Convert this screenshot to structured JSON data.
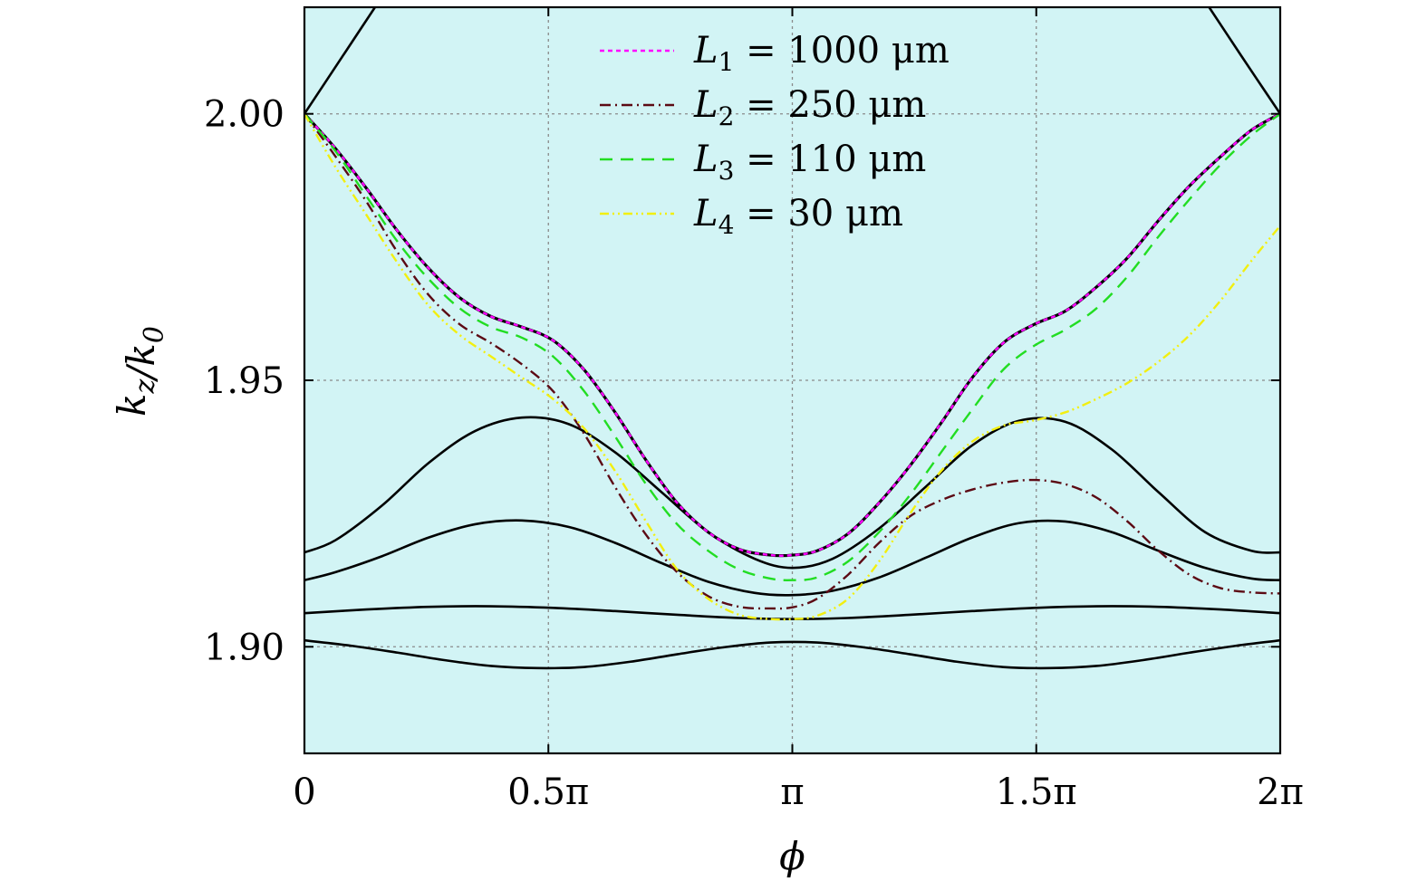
{
  "chart_data": {
    "type": "line",
    "title": "",
    "xlabel": "ϕ",
    "ylabel": "k_z/k_0",
    "xlim": [
      0,
      6.283185
    ],
    "ylim": [
      1.88,
      2.02
    ],
    "grid": true,
    "x_ticks": [
      {
        "value": 0,
        "label": "0"
      },
      {
        "value": 1.570796,
        "label": "0.5π"
      },
      {
        "value": 3.141593,
        "label": "π"
      },
      {
        "value": 4.712389,
        "label": "1.5π"
      },
      {
        "value": 6.283185,
        "label": "2π"
      }
    ],
    "y_ticks": [
      {
        "value": 1.9,
        "label": "1.90"
      },
      {
        "value": 1.95,
        "label": "1.95"
      },
      {
        "value": 2.0,
        "label": "2.00"
      }
    ],
    "legend": {
      "position": "top-center",
      "entries": [
        {
          "symbol": "L",
          "sub": "1",
          "text": "= 1000 μm",
          "series": "L1"
        },
        {
          "symbol": "L",
          "sub": "2",
          "text": "= 250 μm",
          "series": "L2"
        },
        {
          "symbol": "L",
          "sub": "3",
          "text": "= 110 μm",
          "series": "L3"
        },
        {
          "symbol": "L",
          "sub": "4",
          "text": "= 30 μm",
          "series": "L4"
        }
      ]
    },
    "series": [
      {
        "name": "band-1",
        "color": "#000000",
        "dash": "",
        "x": [
          0,
          0.3,
          0.6,
          0.9,
          1.2,
          1.5,
          1.8,
          2.1,
          2.4,
          2.7,
          3.0,
          3.3,
          3.6,
          3.9,
          4.2,
          4.5,
          4.8,
          5.1,
          5.4,
          5.7,
          6.0,
          6.2832
        ],
        "y": [
          1.9012,
          1.9002,
          1.8989,
          1.8975,
          1.8964,
          1.896,
          1.8962,
          1.8972,
          1.8986,
          1.8999,
          1.9008,
          1.9008,
          1.8999,
          1.8986,
          1.8972,
          1.8962,
          1.896,
          1.8964,
          1.8975,
          1.8989,
          1.9002,
          1.9012
        ]
      },
      {
        "name": "band-2",
        "color": "#000000",
        "dash": "",
        "x": [
          0,
          0.4,
          0.8,
          1.2,
          1.6,
          2.0,
          2.4,
          2.8,
          3.1416,
          3.5,
          3.9,
          4.3,
          4.7,
          5.1,
          5.5,
          5.9,
          6.2832
        ],
        "y": [
          1.9063,
          1.907,
          1.9075,
          1.9076,
          1.9073,
          1.9067,
          1.906,
          1.9054,
          1.9052,
          1.9054,
          1.906,
          1.9067,
          1.9073,
          1.9076,
          1.9075,
          1.907,
          1.9063
        ]
      },
      {
        "name": "band-3",
        "color": "#000000",
        "dash": "",
        "x": [
          0,
          0.2,
          0.5,
          0.8,
          1.1,
          1.4,
          1.7,
          2.0,
          2.3,
          2.6,
          2.9,
          3.1416,
          3.4,
          3.7,
          4.0,
          4.3,
          4.6,
          4.9,
          5.2,
          5.5,
          5.8,
          6.1,
          6.2832
        ],
        "y": [
          1.9125,
          1.914,
          1.917,
          1.9205,
          1.923,
          1.9237,
          1.9225,
          1.9195,
          1.9157,
          1.9122,
          1.9101,
          1.9097,
          1.9105,
          1.913,
          1.9167,
          1.9205,
          1.9232,
          1.9235,
          1.9215,
          1.918,
          1.9148,
          1.9128,
          1.9125
        ]
      },
      {
        "name": "band-4",
        "color": "#000000",
        "dash": "",
        "x": [
          0,
          0.2,
          0.5,
          0.8,
          1.1,
          1.4,
          1.7,
          2.0,
          2.3,
          2.6,
          2.9,
          3.1416,
          3.4,
          3.7,
          4.0,
          4.3,
          4.6,
          4.9,
          5.2,
          5.5,
          5.8,
          6.1,
          6.2832
        ],
        "y": [
          1.9177,
          1.92,
          1.9265,
          1.9345,
          1.9405,
          1.943,
          1.9418,
          1.9365,
          1.929,
          1.9215,
          1.9165,
          1.9148,
          1.9165,
          1.9222,
          1.93,
          1.9378,
          1.9424,
          1.9422,
          1.937,
          1.929,
          1.9215,
          1.918,
          1.9177
        ]
      },
      {
        "name": "band-top-left",
        "color": "#000000",
        "dash": "",
        "x": [
          0,
          0.25,
          0.5
        ],
        "y": [
          2.0,
          2.011,
          2.022
        ]
      },
      {
        "name": "band-top-right",
        "color": "#000000",
        "dash": "",
        "x": [
          5.78,
          6.03,
          6.2832
        ],
        "y": [
          2.022,
          2.011,
          2.0
        ]
      },
      {
        "name": "L1",
        "color": "#ff00ff",
        "dash": "5 4",
        "underlay": "#000000",
        "x": [
          0,
          0.2,
          0.4,
          0.6,
          0.8,
          1.0,
          1.2,
          1.4,
          1.6,
          1.8,
          2.0,
          2.2,
          2.4,
          2.6,
          2.8,
          3.0,
          3.1416,
          3.3,
          3.5,
          3.7,
          3.9,
          4.1,
          4.3,
          4.5,
          4.7,
          4.9,
          5.1,
          5.3,
          5.5,
          5.7,
          5.9,
          6.1,
          6.2832
        ],
        "y": [
          2.0,
          1.9935,
          1.986,
          1.978,
          1.971,
          1.9655,
          1.962,
          1.96,
          1.9575,
          1.952,
          1.944,
          1.935,
          1.927,
          1.9215,
          1.9183,
          1.9172,
          1.9172,
          1.918,
          1.9212,
          1.927,
          1.934,
          1.942,
          1.9505,
          1.957,
          1.9605,
          1.963,
          1.9675,
          1.973,
          1.98,
          1.9865,
          1.992,
          1.997,
          2.0
        ]
      },
      {
        "name": "L2",
        "color": "#5c0a14",
        "dash": "12 5 2 5",
        "x": [
          0,
          0.2,
          0.4,
          0.6,
          0.8,
          1.0,
          1.2,
          1.4,
          1.6,
          1.8,
          2.0,
          2.2,
          2.4,
          2.6,
          2.8,
          3.0,
          3.1416,
          3.3,
          3.5,
          3.7,
          3.9,
          4.1,
          4.3,
          4.5,
          4.7,
          4.9,
          5.1,
          5.3,
          5.5,
          5.7,
          5.9,
          6.1,
          6.2832
        ],
        "y": [
          2.0,
          1.992,
          1.9835,
          1.974,
          1.966,
          1.9605,
          1.957,
          1.953,
          1.948,
          1.94,
          1.93,
          1.921,
          1.914,
          1.9095,
          1.9075,
          1.9072,
          1.9074,
          1.909,
          1.9135,
          1.9195,
          1.9245,
          1.9275,
          1.9295,
          1.9308,
          1.9313,
          1.9305,
          1.928,
          1.9235,
          1.918,
          1.9135,
          1.911,
          1.9102,
          1.91
        ]
      },
      {
        "name": "L3",
        "color": "#22dd22",
        "dash": "14 9",
        "x": [
          0,
          0.2,
          0.4,
          0.6,
          0.8,
          1.0,
          1.2,
          1.4,
          1.6,
          1.8,
          2.0,
          2.2,
          2.4,
          2.6,
          2.8,
          3.0,
          3.1416,
          3.3,
          3.5,
          3.7,
          3.9,
          4.1,
          4.3,
          4.5,
          4.7,
          4.9,
          5.1,
          5.3,
          5.5,
          5.7,
          5.9,
          6.1,
          6.2832
        ],
        "y": [
          2.0,
          1.993,
          1.9845,
          1.976,
          1.969,
          1.9635,
          1.96,
          1.958,
          1.9545,
          1.948,
          1.9395,
          1.9305,
          1.923,
          1.918,
          1.9145,
          1.9128,
          1.9125,
          1.913,
          1.916,
          1.9215,
          1.9285,
          1.9365,
          1.9445,
          1.952,
          1.9565,
          1.9595,
          1.9635,
          1.9695,
          1.977,
          1.984,
          1.9905,
          1.996,
          2.0
        ]
      },
      {
        "name": "L4",
        "color": "#f2ef10",
        "dash": "10 4 2 4 2 4",
        "x": [
          0,
          0.2,
          0.4,
          0.6,
          0.8,
          1.0,
          1.2,
          1.4,
          1.6,
          1.8,
          2.0,
          2.2,
          2.4,
          2.6,
          2.8,
          3.0,
          3.1416,
          3.3,
          3.5,
          3.7,
          3.9,
          4.1,
          4.3,
          4.5,
          4.7,
          4.9,
          5.1,
          5.3,
          5.5,
          5.7,
          5.9,
          6.1,
          6.2832
        ],
        "y": [
          2.0,
          1.99,
          1.981,
          1.972,
          1.964,
          1.9585,
          1.9545,
          1.9505,
          1.9465,
          1.941,
          1.933,
          1.9235,
          1.9145,
          1.909,
          1.906,
          1.9052,
          1.9052,
          1.9058,
          1.909,
          1.916,
          1.925,
          1.933,
          1.9385,
          1.9415,
          1.9425,
          1.944,
          1.9465,
          1.9495,
          1.9535,
          1.9585,
          1.965,
          1.9725,
          1.979
        ]
      }
    ]
  }
}
